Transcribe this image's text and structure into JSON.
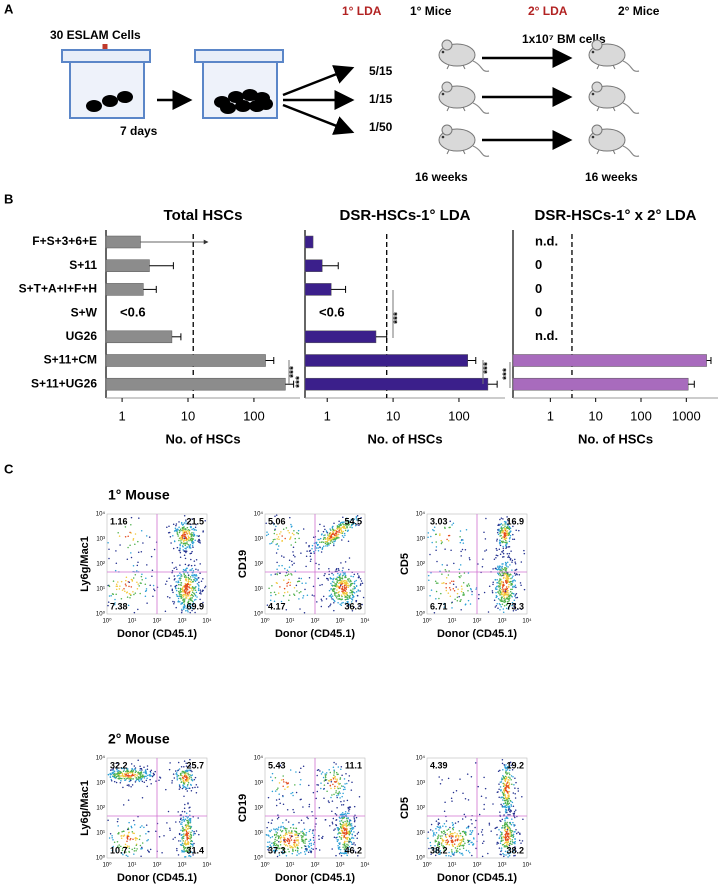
{
  "panel_a": {
    "label": "A",
    "cells": "30 ESLAM Cells",
    "culture_time": "7 days",
    "lda1": "1° LDA",
    "mice1": "1° Mice",
    "lda2": "2° LDA",
    "mice2": "2° Mice",
    "doses": [
      "5/15",
      "1/15",
      "1/50"
    ],
    "transplant": "1x10⁷ BM cells",
    "time1": "16 weeks",
    "time2": "16 weeks"
  },
  "panel_b_label": "B",
  "chart_data": [
    {
      "type": "bar",
      "orientation": "horizontal",
      "title": "Total HSCs",
      "x_label": "No. of HSCs",
      "xscale": "log",
      "color": "#8c8c8c",
      "categories": [
        "F+S+3+6+E",
        "S+11",
        "S+T+A+I+F+H",
        "S+W",
        "UG26",
        "S+11+CM",
        "S+11+UG26"
      ],
      "values": [
        1.9,
        2.6,
        2.1,
        null,
        5.7,
        150,
        300
      ],
      "errors": [
        18,
        3.4,
        1.2,
        null,
        2.1,
        50,
        100
      ],
      "arrow_errors": [
        true,
        false,
        false,
        false,
        false,
        false,
        false
      ],
      "value_labels": [
        null,
        null,
        null,
        "<0.6",
        null,
        null,
        null
      ],
      "reference_line": 12,
      "annotations": [
        "***",
        "***"
      ],
      "xlim": [
        0.57,
        500
      ],
      "xticks": [
        1,
        10,
        100
      ]
    },
    {
      "type": "bar",
      "orientation": "horizontal",
      "title": "DSR-HSCs-1° LDA",
      "x_label": "No. of HSCs",
      "xscale": "log",
      "color": "#3b1f8b",
      "values": [
        0.61,
        0.84,
        1.15,
        null,
        5.5,
        136,
        275
      ],
      "errors": [
        null,
        0.63,
        0.75,
        null,
        2.5,
        44,
        105
      ],
      "value_labels": [
        null,
        null,
        null,
        "<0.6",
        null,
        null,
        null
      ],
      "reference_line": 8,
      "annotations": [
        "***",
        "***",
        "***"
      ],
      "xlim": [
        0.46,
        500
      ],
      "xticks": [
        1,
        10,
        100
      ]
    },
    {
      "type": "bar",
      "orientation": "horizontal",
      "title": "DSR-HSCs-1° x 2° LDA",
      "x_label": "No. of HSCs",
      "xscale": "log",
      "color": "#a86bbd",
      "values": [
        null,
        0,
        0,
        0,
        null,
        2800,
        1100
      ],
      "errors": [
        null,
        null,
        null,
        null,
        null,
        700,
        400
      ],
      "value_labels": [
        "n.d.",
        "0",
        "0",
        "0",
        "n.d.",
        null,
        null
      ],
      "reference_line": 3,
      "xlim": [
        0.15,
        5000
      ],
      "xticks": [
        1,
        10,
        100,
        1000
      ]
    }
  ],
  "panel_c": {
    "label": "C",
    "axis_ticks": [
      "10⁰",
      "10¹",
      "10²",
      "10³",
      "10⁴"
    ],
    "rows": [
      {
        "title": "1° Mouse",
        "plots": [
          {
            "y_label": "Ly6g/Mac1",
            "x_label": "Donor (CD45.1)",
            "quadrants": [
              "1.16",
              "21.5",
              "7.38",
              "69.9"
            ]
          },
          {
            "y_label": "CD19",
            "x_label": "Donor (CD45.1)",
            "quadrants": [
              "5.06",
              "54.5",
              "4.17",
              "36.3"
            ]
          },
          {
            "y_label": "CD5",
            "x_label": "Donor (CD45.1)",
            "quadrants": [
              "3.03",
              "16.9",
              "6.71",
              "73.3"
            ]
          }
        ]
      },
      {
        "title": "2° Mouse",
        "plots": [
          {
            "y_label": "Ly6g/Mac1",
            "x_label": "Donor (CD45.1)",
            "quadrants": [
              "32.2",
              "25.7",
              "10.7",
              "31.4"
            ]
          },
          {
            "y_label": "CD19",
            "x_label": "Donor (CD45.1)",
            "quadrants": [
              "5.43",
              "11.1",
              "37.3",
              "46.2"
            ]
          },
          {
            "y_label": "CD5",
            "x_label": "Donor (CD45.1)",
            "quadrants": [
              "4.39",
              "19.2",
              "38.2",
              "38.2"
            ]
          }
        ]
      }
    ]
  }
}
